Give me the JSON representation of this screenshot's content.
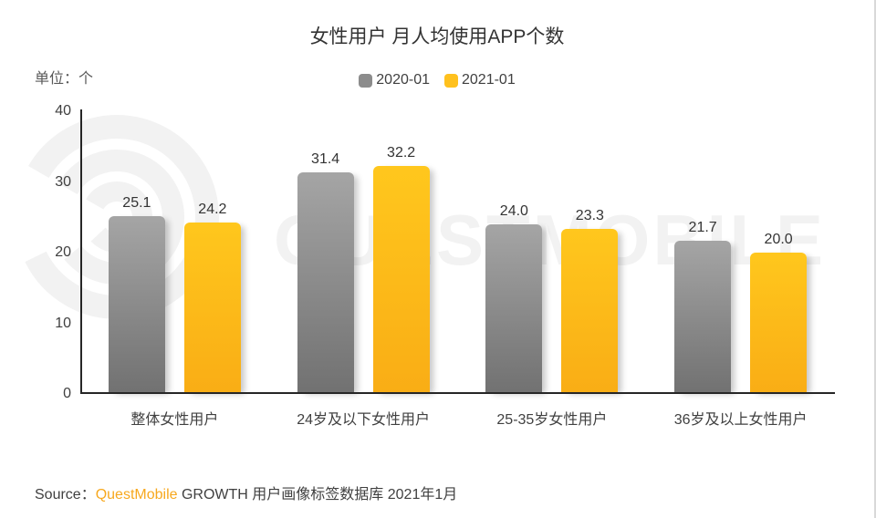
{
  "title": "女性用户 月人均使用APP个数",
  "unit_label": "单位：个",
  "legend": [
    {
      "label": "2020-01",
      "color": "#8c8c8c"
    },
    {
      "label": "2021-01",
      "color": "#ffc11e"
    }
  ],
  "watermark": {
    "text": "QUESTMOBILE"
  },
  "source": {
    "prefix": "Source：",
    "brand": "QuestMobile",
    "rest": " GROWTH 用户画像标签数据库 2021年1月"
  },
  "colors": {
    "axis": "#262626",
    "gray_bar_top": "#a5a5a5",
    "gray_bar_bottom": "#717171",
    "yellow_bar_top": "#ffc71d",
    "yellow_bar_bottom": "#f9ad15",
    "watermark": "#f2f2f2",
    "page_right_border": "#d9d9d9"
  },
  "chart_data": {
    "type": "bar",
    "categories": [
      "整体女性用户",
      "24岁及以下女性用户",
      "25-35岁女性用户",
      "36岁及以上女性用户"
    ],
    "series": [
      {
        "name": "2020-01",
        "values": [
          25.1,
          31.4,
          24.0,
          21.7
        ],
        "color_top": "#a5a5a5",
        "color_bottom": "#717171"
      },
      {
        "name": "2021-01",
        "values": [
          24.2,
          32.2,
          23.3,
          20.0
        ],
        "color_top": "#ffc71d",
        "color_bottom": "#f9ad15"
      }
    ],
    "title": "女性用户 月人均使用APP个数",
    "xlabel": "",
    "ylabel": "单位：个",
    "ylim": [
      0,
      40
    ],
    "yticks": [
      0,
      10,
      20,
      30,
      40
    ],
    "grid": false,
    "legend_position": "top",
    "value_labels": true,
    "value_format": "0.1f"
  }
}
